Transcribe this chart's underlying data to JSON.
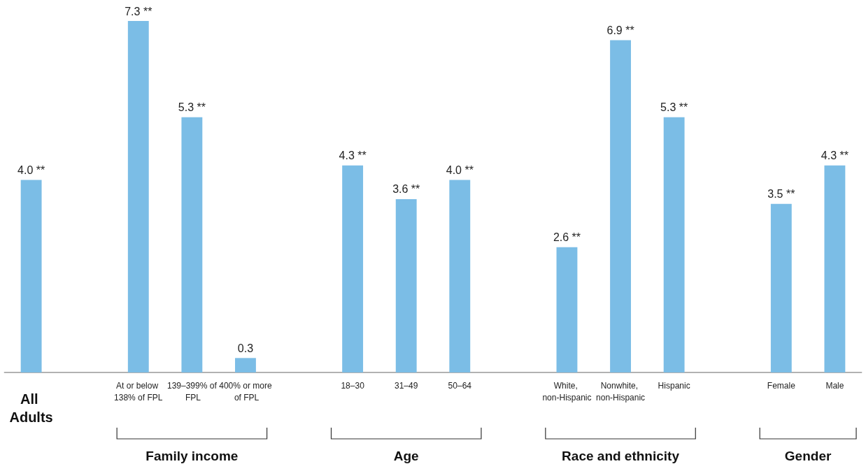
{
  "chart_data": {
    "type": "bar",
    "categories": [
      "All Adults",
      null,
      "At or below 138% of FPL",
      "139–399% of FPL",
      "400% or more of FPL",
      null,
      "18–30",
      "31–49",
      "50–64",
      null,
      "White, non-Hispanic",
      "Nonwhite, non-Hispanic",
      "Hispanic",
      null,
      "Female",
      "Male"
    ],
    "values": [
      4.0,
      null,
      7.3,
      5.3,
      0.3,
      null,
      4.3,
      3.6,
      4.0,
      null,
      2.6,
      6.9,
      5.3,
      null,
      3.5,
      4.3
    ],
    "value_labels": [
      "4.0 **",
      null,
      "7.3 **",
      "5.3 **",
      "0.3",
      null,
      "4.3 **",
      "3.6 **",
      "4.0 **",
      null,
      "2.6 **",
      "6.9 **",
      "5.3 **",
      null,
      "3.5 **",
      "4.3 **"
    ],
    "color": "#7bbde6",
    "annotations": [
      "Family income",
      "Age",
      "Race and ethnicity",
      "Gender"
    ],
    "grid": false
  }
}
